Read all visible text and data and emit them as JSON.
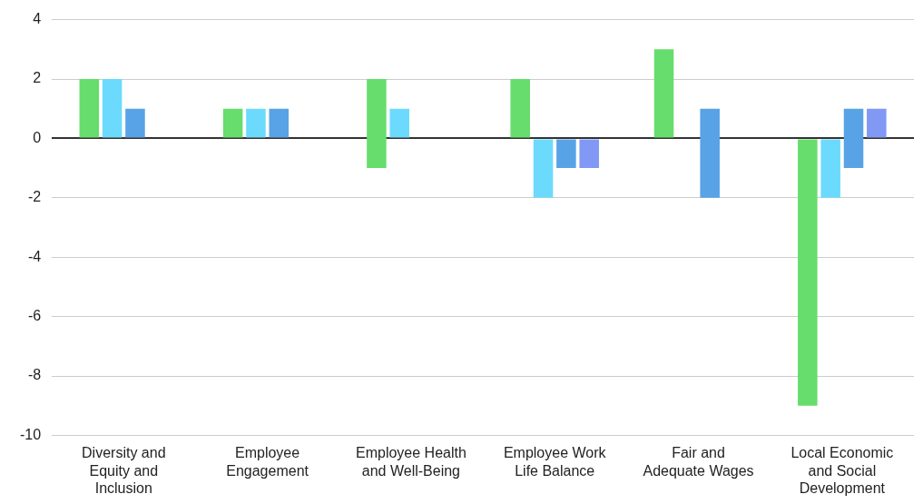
{
  "chart_data": {
    "type": "bar",
    "categories": [
      "Diversity and Equity and Inclusion",
      "Employee Engagement",
      "Employee Health and Well-Being",
      "Employee Work Life Balance",
      "Fair and Adequate Wages",
      "Local Economic and Social Development"
    ],
    "series": [
      {
        "color": "#66dd6d",
        "values": [
          2,
          1,
          3,
          2,
          3,
          -9
        ],
        "base": [
          0,
          0,
          -1,
          0,
          0,
          0
        ]
      },
      {
        "color": "#6cdafc",
        "values": [
          2,
          1,
          1,
          -2,
          null,
          -2
        ],
        "base": [
          0,
          0,
          0,
          0,
          null,
          0
        ]
      },
      {
        "color": "#58a2e6",
        "values": [
          1,
          1,
          null,
          -1,
          3,
          2
        ],
        "base": [
          0,
          0,
          null,
          0,
          -2,
          -1
        ]
      },
      {
        "color": "#8199f5",
        "values": [
          null,
          null,
          null,
          -1,
          null,
          1
        ],
        "base": [
          null,
          null,
          null,
          0,
          null,
          0
        ]
      }
    ],
    "ylim": [
      -10,
      4
    ],
    "yticks": [
      -10,
      -8,
      -6,
      -4,
      -2,
      0,
      2,
      4
    ],
    "grid": "y",
    "legend": false
  }
}
